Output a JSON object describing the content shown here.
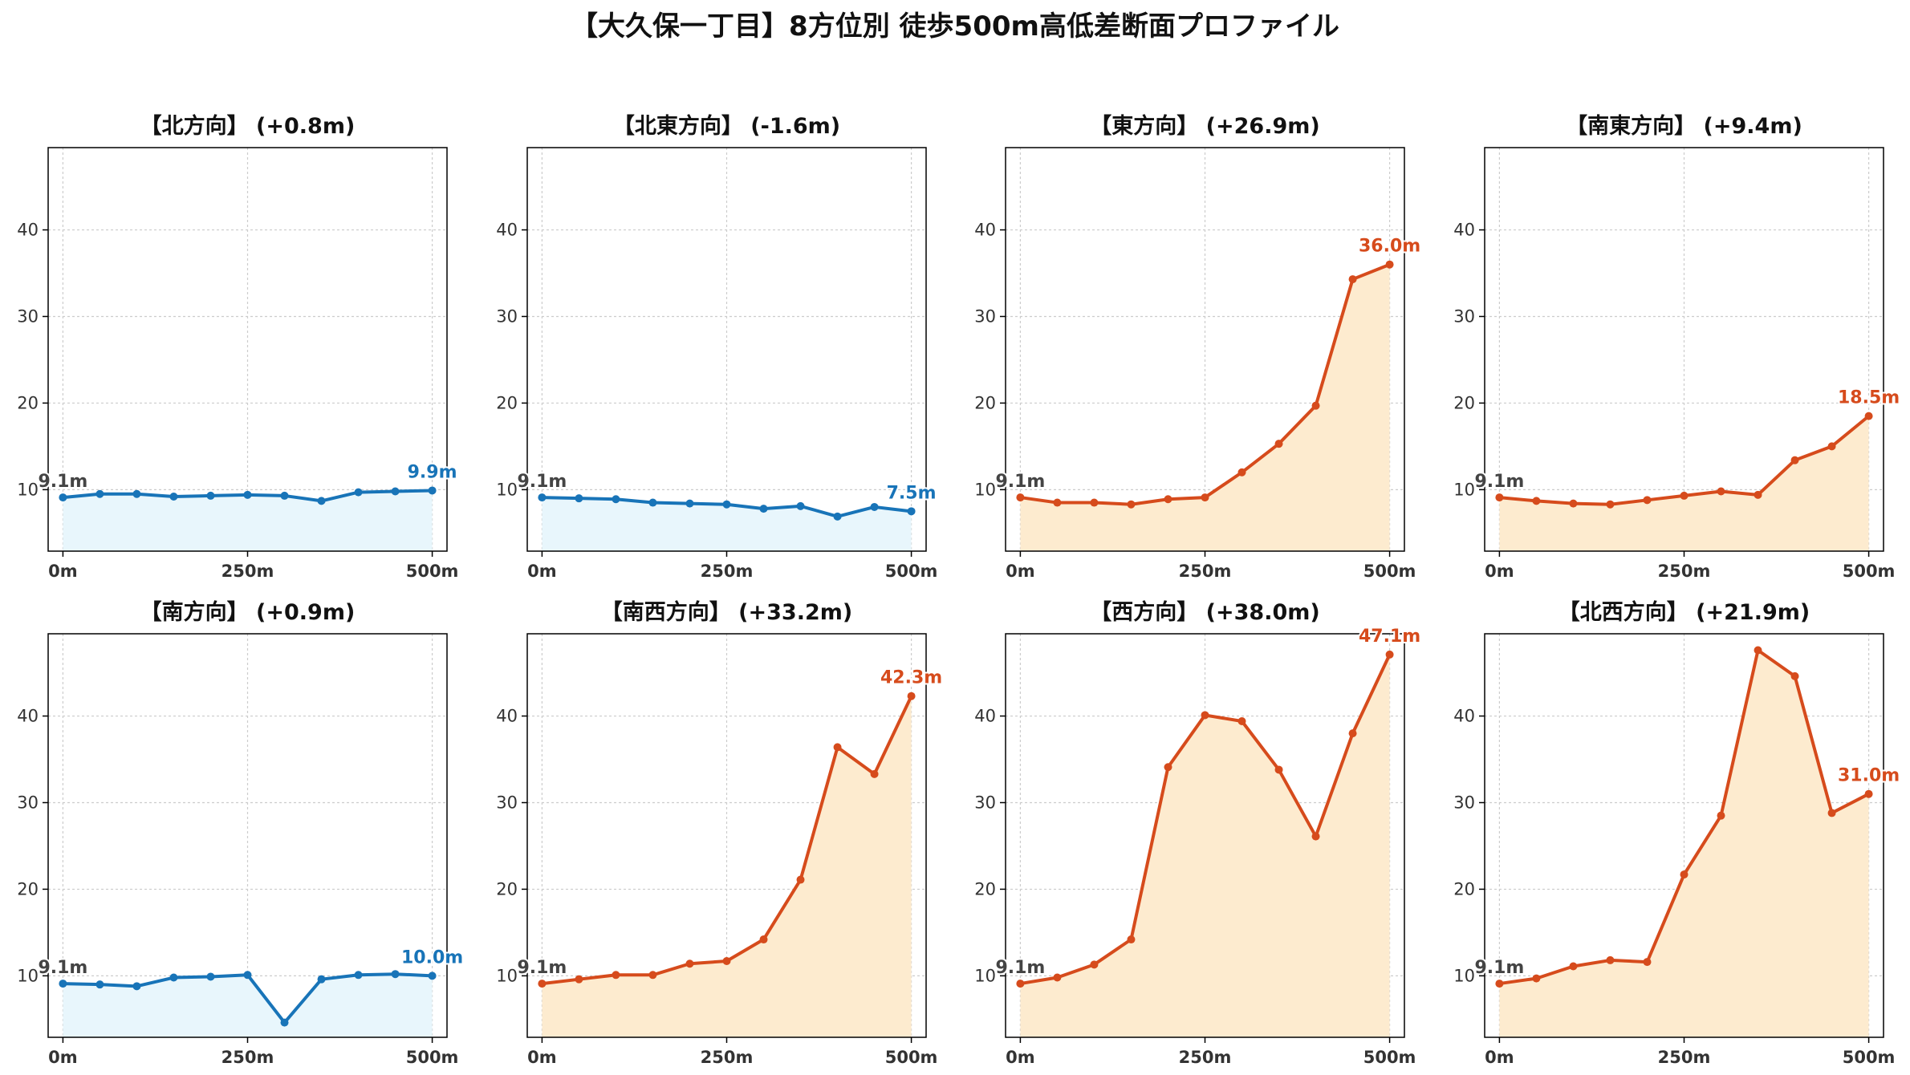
{
  "figure": {
    "title": "【大久保一丁目】8方位別 徒歩500m高低差断面プロファイル"
  },
  "colors": {
    "descent_line": "#1874b8",
    "descent_fill": "#e8f6fc",
    "ascent_line": "#d64b1c",
    "ascent_fill": "#fdebcf",
    "start_label": "#444444",
    "grid": "#cccccc",
    "axis": "#000000",
    "tick_label": "#333333"
  },
  "chart_data": [
    {
      "type": "area",
      "title": "【北方向】 (+0.8m)",
      "trend": "descent",
      "x": [
        0,
        50,
        100,
        150,
        200,
        250,
        300,
        350,
        400,
        450,
        500
      ],
      "y": [
        9.1,
        9.5,
        9.5,
        9.2,
        9.3,
        9.4,
        9.3,
        8.7,
        9.7,
        9.8,
        9.9
      ],
      "start_label": "9.1m",
      "end_label": "9.9m",
      "xticks": [
        0,
        250,
        500
      ],
      "xtick_labels": [
        "0m",
        "250m",
        "500m"
      ],
      "yticks": [
        10,
        20,
        30,
        40
      ],
      "ytick_labels": [
        "10",
        "20",
        "30",
        "40"
      ],
      "xlim": [
        -20,
        520
      ],
      "ylim": [
        2.9,
        49.5
      ],
      "grid": true
    },
    {
      "type": "area",
      "title": "【北東方向】 (-1.6m)",
      "trend": "descent",
      "x": [
        0,
        50,
        100,
        150,
        200,
        250,
        300,
        350,
        400,
        450,
        500
      ],
      "y": [
        9.1,
        9.0,
        8.9,
        8.5,
        8.4,
        8.3,
        7.8,
        8.1,
        6.9,
        8.0,
        7.5
      ],
      "start_label": "9.1m",
      "end_label": "7.5m",
      "xticks": [
        0,
        250,
        500
      ],
      "xtick_labels": [
        "0m",
        "250m",
        "500m"
      ],
      "yticks": [
        10,
        20,
        30,
        40
      ],
      "ytick_labels": [
        "10",
        "20",
        "30",
        "40"
      ],
      "xlim": [
        -20,
        520
      ],
      "ylim": [
        2.9,
        49.5
      ],
      "grid": true
    },
    {
      "type": "area",
      "title": "【東方向】 (+26.9m)",
      "trend": "ascent",
      "x": [
        0,
        50,
        100,
        150,
        200,
        250,
        300,
        350,
        400,
        450,
        500
      ],
      "y": [
        9.1,
        8.5,
        8.5,
        8.3,
        8.9,
        9.1,
        12.0,
        15.3,
        19.7,
        34.3,
        36.0
      ],
      "start_label": "9.1m",
      "end_label": "36.0m",
      "xticks": [
        0,
        250,
        500
      ],
      "xtick_labels": [
        "0m",
        "250m",
        "500m"
      ],
      "yticks": [
        10,
        20,
        30,
        40
      ],
      "ytick_labels": [
        "10",
        "20",
        "30",
        "40"
      ],
      "xlim": [
        -20,
        520
      ],
      "ylim": [
        2.9,
        49.5
      ],
      "grid": true
    },
    {
      "type": "area",
      "title": "【南東方向】 (+9.4m)",
      "trend": "ascent",
      "x": [
        0,
        50,
        100,
        150,
        200,
        250,
        300,
        350,
        400,
        450,
        500
      ],
      "y": [
        9.1,
        8.7,
        8.4,
        8.3,
        8.8,
        9.3,
        9.8,
        9.4,
        13.4,
        15.0,
        18.5
      ],
      "start_label": "9.1m",
      "end_label": "18.5m",
      "xticks": [
        0,
        250,
        500
      ],
      "xtick_labels": [
        "0m",
        "250m",
        "500m"
      ],
      "yticks": [
        10,
        20,
        30,
        40
      ],
      "ytick_labels": [
        "10",
        "20",
        "30",
        "40"
      ],
      "xlim": [
        -20,
        520
      ],
      "ylim": [
        2.9,
        49.5
      ],
      "grid": true
    },
    {
      "type": "area",
      "title": "【南方向】 (+0.9m)",
      "trend": "descent",
      "x": [
        0,
        50,
        100,
        150,
        200,
        250,
        300,
        350,
        400,
        450,
        500
      ],
      "y": [
        9.1,
        9.0,
        8.8,
        9.8,
        9.9,
        10.1,
        4.6,
        9.6,
        10.1,
        10.2,
        10.0
      ],
      "start_label": "9.1m",
      "end_label": "10.0m",
      "xticks": [
        0,
        250,
        500
      ],
      "xtick_labels": [
        "0m",
        "250m",
        "500m"
      ],
      "yticks": [
        10,
        20,
        30,
        40
      ],
      "ytick_labels": [
        "10",
        "20",
        "30",
        "40"
      ],
      "xlim": [
        -20,
        520
      ],
      "ylim": [
        2.9,
        49.5
      ],
      "grid": true
    },
    {
      "type": "area",
      "title": "【南西方向】 (+33.2m)",
      "trend": "ascent",
      "x": [
        0,
        50,
        100,
        150,
        200,
        250,
        300,
        350,
        400,
        450,
        500
      ],
      "y": [
        9.1,
        9.6,
        10.1,
        10.1,
        11.4,
        11.7,
        14.2,
        21.1,
        36.4,
        33.3,
        42.3
      ],
      "start_label": "9.1m",
      "end_label": "42.3m",
      "xticks": [
        0,
        250,
        500
      ],
      "xtick_labels": [
        "0m",
        "250m",
        "500m"
      ],
      "yticks": [
        10,
        20,
        30,
        40
      ],
      "ytick_labels": [
        "10",
        "20",
        "30",
        "40"
      ],
      "xlim": [
        -20,
        520
      ],
      "ylim": [
        2.9,
        49.5
      ],
      "grid": true
    },
    {
      "type": "area",
      "title": "【西方向】 (+38.0m)",
      "trend": "ascent",
      "x": [
        0,
        50,
        100,
        150,
        200,
        250,
        300,
        350,
        400,
        450,
        500
      ],
      "y": [
        9.1,
        9.8,
        11.3,
        14.2,
        34.1,
        40.1,
        39.4,
        33.8,
        26.1,
        38.0,
        47.1
      ],
      "start_label": "9.1m",
      "end_label": "47.1m",
      "xticks": [
        0,
        250,
        500
      ],
      "xtick_labels": [
        "0m",
        "250m",
        "500m"
      ],
      "yticks": [
        10,
        20,
        30,
        40
      ],
      "ytick_labels": [
        "10",
        "20",
        "30",
        "40"
      ],
      "xlim": [
        -20,
        520
      ],
      "ylim": [
        2.9,
        49.5
      ],
      "grid": true
    },
    {
      "type": "area",
      "title": "【北西方向】 (+21.9m)",
      "trend": "ascent",
      "x": [
        0,
        50,
        100,
        150,
        200,
        250,
        300,
        350,
        400,
        450,
        500
      ],
      "y": [
        9.1,
        9.7,
        11.1,
        11.8,
        11.6,
        21.7,
        28.5,
        47.6,
        44.6,
        28.8,
        31.0
      ],
      "start_label": "9.1m",
      "end_label": "31.0m",
      "xticks": [
        0,
        250,
        500
      ],
      "xtick_labels": [
        "0m",
        "250m",
        "500m"
      ],
      "yticks": [
        10,
        20,
        30,
        40
      ],
      "ytick_labels": [
        "10",
        "20",
        "30",
        "40"
      ],
      "xlim": [
        -20,
        520
      ],
      "ylim": [
        2.9,
        49.5
      ],
      "grid": true
    }
  ]
}
